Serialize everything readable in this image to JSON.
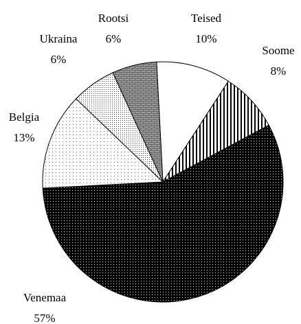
{
  "chart_data": {
    "type": "pie",
    "categories": [
      "Teised",
      "Soome",
      "Venemaa",
      "Belgia",
      "Ukraina",
      "Rootsi"
    ],
    "values": [
      10,
      8,
      57,
      13,
      6,
      6
    ],
    "value_labels": [
      "10%",
      "8%",
      "57%",
      "13%",
      "6%",
      "6%"
    ],
    "colors": [
      "#ffffff",
      "#b0b0b0",
      "#111111",
      "#f2f2f2",
      "#d0d0d0",
      "#8c8c8c"
    ]
  }
}
